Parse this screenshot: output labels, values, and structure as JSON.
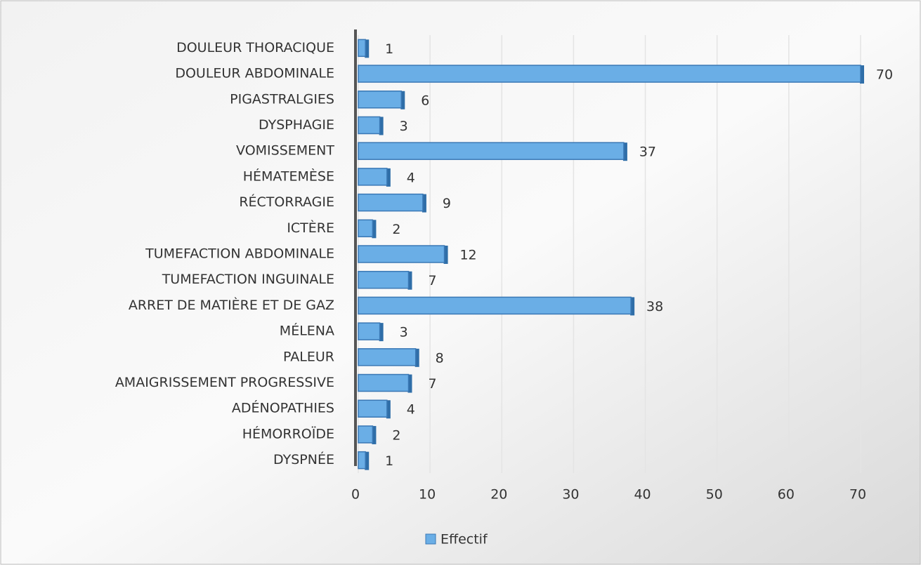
{
  "chart_data": {
    "type": "bar",
    "orientation": "horizontal",
    "categories": [
      "DOULEUR THORACIQUE",
      "DOULEUR ABDOMINALE",
      "PIGASTRALGIES",
      "DYSPHAGIE",
      "VOMISSEMENT",
      "HÉMATEMÈSE",
      "RÉCTORRAGIE",
      "ICTÈRE",
      "TUMEFACTION ABDOMINALE",
      "TUMEFACTION INGUINALE",
      "ARRET DE MATIÈRE ET DE GAZ",
      "MÉLENA",
      "PALEUR",
      "AMAIGRISSEMENT PROGRESSIVE",
      "ADÉNOPATHIES",
      "HÉMORROÏDE",
      "DYSPNÉE"
    ],
    "series": [
      {
        "name": "Effectif",
        "color": "#6aaee6",
        "values": [
          1,
          70,
          6,
          3,
          37,
          4,
          9,
          2,
          12,
          7,
          38,
          3,
          8,
          7,
          4,
          2,
          1
        ]
      }
    ],
    "xlim": [
      0,
      70
    ],
    "xticks": [
      0,
      10,
      20,
      30,
      40,
      50,
      60,
      70
    ],
    "grid": true,
    "legend": "bottom"
  }
}
